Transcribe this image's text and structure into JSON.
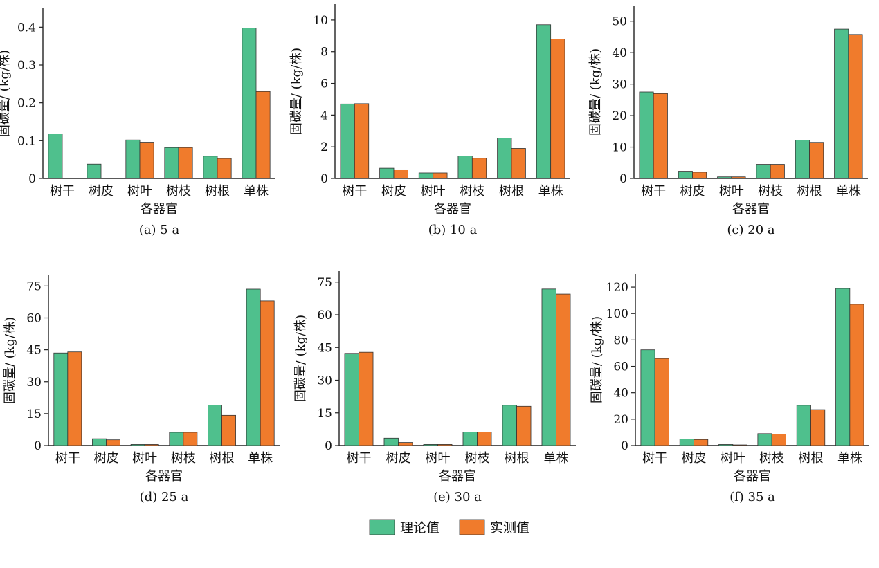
{
  "legend": [
    {
      "label": "理论值",
      "color": "#4fc08d"
    },
    {
      "label": "实测值",
      "color": "#f07b2c"
    }
  ],
  "chart_data": [
    {
      "type": "bar",
      "caption": "(a) 5 a",
      "xlabel": "各器官",
      "ylabel": "固碳量/ (kg/株)",
      "categories": [
        "树干",
        "树皮",
        "树叶",
        "树枝",
        "树根",
        "单株"
      ],
      "ylim": [
        0,
        0.45
      ],
      "yticks": [
        "0",
        "0.1",
        "0.2",
        "0.3",
        "0.4"
      ],
      "ytick_values": [
        0,
        0.1,
        0.2,
        0.3,
        0.4
      ],
      "series": [
        {
          "name": "理论值",
          "values": [
            0.118,
            0.038,
            0.102,
            0.082,
            0.059,
            0.398
          ]
        },
        {
          "name": "实测值",
          "values": [
            0,
            0,
            0.096,
            0.082,
            0.053,
            0.23
          ]
        }
      ]
    },
    {
      "type": "bar",
      "caption": "(b) 10 a",
      "xlabel": "各器官",
      "ylabel": "固碳量/ (kg/株)",
      "categories": [
        "树干",
        "树皮",
        "树叶",
        "树枝",
        "树根",
        "单株"
      ],
      "ylim": [
        0,
        11
      ],
      "yticks": [
        "0",
        "2",
        "4",
        "6",
        "8",
        "10"
      ],
      "ytick_values": [
        0,
        2,
        4,
        6,
        8,
        10
      ],
      "series": [
        {
          "name": "理论值",
          "values": [
            4.7,
            0.65,
            0.35,
            1.42,
            2.55,
            9.7
          ]
        },
        {
          "name": "实测值",
          "values": [
            4.72,
            0.55,
            0.35,
            1.28,
            1.9,
            8.8
          ]
        }
      ]
    },
    {
      "type": "bar",
      "caption": "(c) 20 a",
      "xlabel": "各器官",
      "ylabel": "固碳量/ (kg/株)",
      "categories": [
        "树干",
        "树皮",
        "树叶",
        "树枝",
        "树根",
        "单株"
      ],
      "ylim": [
        0,
        55
      ],
      "yticks": [
        "0",
        "10",
        "20",
        "30",
        "40",
        "50"
      ],
      "ytick_values": [
        0,
        10,
        20,
        30,
        40,
        50
      ],
      "series": [
        {
          "name": "理论值",
          "values": [
            27.5,
            2.3,
            0.5,
            4.5,
            12.2,
            47.5
          ]
        },
        {
          "name": "实测值",
          "values": [
            27.0,
            2.0,
            0.5,
            4.5,
            11.5,
            45.8
          ]
        }
      ]
    },
    {
      "type": "bar",
      "caption": "(d) 25 a",
      "xlabel": "各器官",
      "ylabel": "固碳量/ (kg/株)",
      "categories": [
        "树干",
        "树皮",
        "树叶",
        "树枝",
        "树根",
        "单株"
      ],
      "ylim": [
        0,
        80
      ],
      "yticks": [
        "0",
        "15",
        "30",
        "45",
        "60",
        "75"
      ],
      "ytick_values": [
        0,
        15,
        30,
        45,
        60,
        75
      ],
      "series": [
        {
          "name": "理论值",
          "values": [
            43.5,
            3.2,
            0.5,
            6.2,
            19.0,
            73.5
          ]
        },
        {
          "name": "实测值",
          "values": [
            44.0,
            2.7,
            0.5,
            6.2,
            14.2,
            68.0
          ]
        }
      ]
    },
    {
      "type": "bar",
      "caption": "(e) 30 a",
      "xlabel": "各器官",
      "ylabel": "固碳量/ (kg/株)",
      "categories": [
        "树干",
        "树皮",
        "树叶",
        "树枝",
        "树根",
        "单株"
      ],
      "ylim": [
        0,
        80
      ],
      "yticks": [
        "0",
        "15",
        "30",
        "45",
        "60",
        "75"
      ],
      "ytick_values": [
        0,
        15,
        30,
        45,
        60,
        75
      ],
      "series": [
        {
          "name": "理论值",
          "values": [
            42.3,
            3.4,
            0.5,
            6.2,
            18.5,
            71.8
          ]
        },
        {
          "name": "实测值",
          "values": [
            42.8,
            1.4,
            0.5,
            6.2,
            18.0,
            69.5
          ]
        }
      ]
    },
    {
      "type": "bar",
      "caption": "(f) 35 a",
      "xlabel": "各器官",
      "ylabel": "固碳量/ (kg/株)",
      "categories": [
        "树干",
        "树皮",
        "树叶",
        "树枝",
        "树根",
        "单株"
      ],
      "ylim": [
        0,
        130
      ],
      "yticks": [
        "0",
        "20",
        "40",
        "60",
        "80",
        "100",
        "120"
      ],
      "ytick_values": [
        0,
        20,
        40,
        60,
        80,
        100,
        120
      ],
      "series": [
        {
          "name": "理论值",
          "values": [
            72.5,
            5.0,
            0.8,
            9.0,
            30.5,
            119.0
          ]
        },
        {
          "name": "实测值",
          "values": [
            66.0,
            4.6,
            0.5,
            8.6,
            27.2,
            107.0
          ]
        }
      ]
    }
  ]
}
